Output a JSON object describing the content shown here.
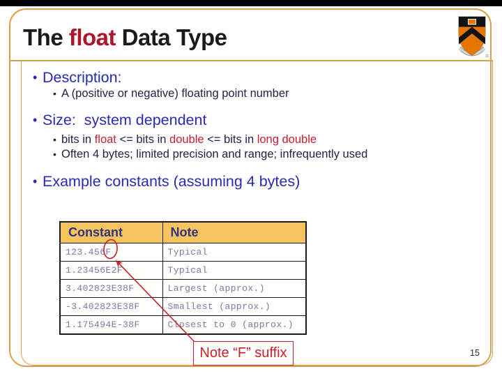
{
  "slide": {
    "page_number": "15",
    "title_segments": [
      {
        "text": "The ",
        "style": "black"
      },
      {
        "text": "float",
        "style": "titlered"
      },
      {
        "text": " Data Type",
        "style": "black"
      }
    ],
    "bullets": [
      {
        "level": 1,
        "gap": "",
        "segments": [
          {
            "text": "Description:",
            "style": "blue"
          }
        ]
      },
      {
        "level": 2,
        "gap": "",
        "segments": [
          {
            "text": "A (positive or negative) floating point number",
            "style": "dark"
          }
        ]
      },
      {
        "level": 1,
        "gap": "mt14",
        "segments": [
          {
            "text": "Size:  system dependent",
            "style": "blue"
          }
        ]
      },
      {
        "level": 2,
        "gap": "mt5",
        "segments": [
          {
            "text": "bits in ",
            "style": "dark"
          },
          {
            "text": "float",
            "style": "red"
          },
          {
            "text": " <= bits in ",
            "style": "dark"
          },
          {
            "text": "double",
            "style": "red"
          },
          {
            "text": " <= bits in ",
            "style": "dark"
          },
          {
            "text": "long double",
            "style": "red"
          }
        ]
      },
      {
        "level": 2,
        "gap": "",
        "segments": [
          {
            "text": "Often 4 bytes; limited precision and range; infrequently used",
            "style": "dark"
          }
        ]
      },
      {
        "level": 1,
        "gap": "mt15",
        "segments": [
          {
            "text": "Example constants (assuming 4 bytes)",
            "style": "blue"
          }
        ]
      }
    ],
    "table": {
      "headers": [
        "Constant",
        "Note"
      ],
      "rows": [
        [
          "123.456F",
          "Typical"
        ],
        [
          "1.23456E2F",
          "Typical"
        ],
        [
          "3.402823E38F",
          "Largest (approx.)"
        ],
        [
          "-3.402823E38F",
          "Smallest (approx.)"
        ],
        [
          "1.175494E-38F",
          "Closest to 0 (approx.)"
        ]
      ]
    },
    "callout": {
      "label": "Note “F” suffix"
    },
    "icons": {
      "logo": "princeton-shield",
      "annotation": "red-ellipse-and-arrow"
    }
  },
  "colors": {
    "top_bar_black": "#000000",
    "frame_orange": "#d9a04f",
    "title_red": "#ac162c",
    "keyword_red": "#c41f33",
    "bullet_blue": "#2a2ab5",
    "body_dark": "#222247",
    "table_header_bg": "#f5c45f",
    "table_header_text": "#32327e",
    "table_data_text": "#7878ab",
    "annotation_red": "#c9202a"
  }
}
